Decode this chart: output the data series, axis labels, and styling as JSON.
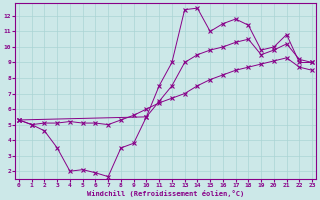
{
  "xlabel": "Windchill (Refroidissement éolien,°C)",
  "bg_color": "#cce8e8",
  "grid_color": "#aad4d4",
  "line_color": "#880088",
  "xlim": [
    -0.3,
    23.3
  ],
  "ylim": [
    1.5,
    12.8
  ],
  "xticks": [
    0,
    1,
    2,
    3,
    4,
    5,
    6,
    7,
    8,
    9,
    10,
    11,
    12,
    13,
    14,
    15,
    16,
    17,
    18,
    19,
    20,
    21,
    22,
    23
  ],
  "yticks": [
    2,
    3,
    4,
    5,
    6,
    7,
    8,
    9,
    10,
    11,
    12
  ],
  "s1_x": [
    0,
    1,
    2,
    3,
    4,
    5,
    6,
    7,
    8,
    9,
    10,
    11,
    12,
    13,
    14,
    15,
    16,
    17,
    18,
    19,
    20,
    21,
    22,
    23
  ],
  "s1_y": [
    5.3,
    5.0,
    4.6,
    3.5,
    2.0,
    2.1,
    1.9,
    1.65,
    3.5,
    3.8,
    5.5,
    7.5,
    9.0,
    12.4,
    12.5,
    11.0,
    11.5,
    11.8,
    11.4,
    9.8,
    10.0,
    10.8,
    9.0,
    9.0
  ],
  "s2_x": [
    0,
    10,
    11,
    12,
    13,
    14,
    15,
    16,
    17,
    18,
    19,
    20,
    21,
    22,
    23
  ],
  "s2_y": [
    5.3,
    5.5,
    6.5,
    7.5,
    9.0,
    9.5,
    9.8,
    10.0,
    10.3,
    10.5,
    9.5,
    9.8,
    10.2,
    9.2,
    9.0
  ],
  "s3_x": [
    0,
    1,
    2,
    3,
    4,
    5,
    6,
    7,
    8,
    9,
    10,
    11,
    12,
    13,
    14,
    15,
    16,
    17,
    18,
    19,
    20,
    21,
    22,
    23
  ],
  "s3_y": [
    5.3,
    5.0,
    5.1,
    5.1,
    5.2,
    5.1,
    5.1,
    5.0,
    5.3,
    5.6,
    6.0,
    6.4,
    6.7,
    7.0,
    7.5,
    7.9,
    8.2,
    8.5,
    8.7,
    8.9,
    9.1,
    9.3,
    8.7,
    8.5
  ]
}
